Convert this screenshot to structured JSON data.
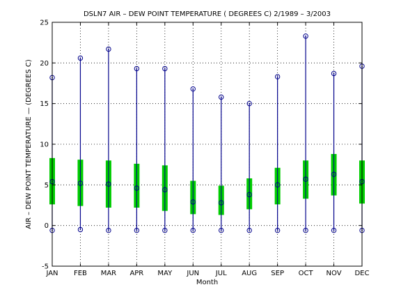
{
  "chart_data": {
    "type": "box",
    "title": "DSLN7  AIR – DEW POINT TEMPERATURE ( DEGREES C) 2/1989 – 3/2003",
    "xlabel": "Month",
    "ylabel": "AIR – DEW POINT TEMPERATURE — (DEGREES C)",
    "categories": [
      "JAN",
      "FEB",
      "MAR",
      "APR",
      "MAY",
      "JUN",
      "JUL",
      "AUG",
      "SEP",
      "OCT",
      "NOV",
      "DEC"
    ],
    "ylim": [
      -5,
      25
    ],
    "yticks": [
      -5,
      0,
      5,
      10,
      15,
      20,
      25
    ],
    "grid": true,
    "series": [
      {
        "min": [
          -0.6,
          -0.5,
          -0.6,
          -0.6,
          -0.6,
          -0.6,
          -0.6,
          -0.6,
          -0.6,
          -0.6,
          -0.6,
          -0.6
        ],
        "q1": [
          2.6,
          2.4,
          2.2,
          2.2,
          1.8,
          1.4,
          1.3,
          2.0,
          2.6,
          3.3,
          3.7,
          2.7
        ],
        "median": [
          5.4,
          5.2,
          5.1,
          4.6,
          4.4,
          2.9,
          2.8,
          3.8,
          5.0,
          5.7,
          6.3,
          5.4
        ],
        "q3": [
          8.3,
          8.1,
          8.0,
          7.6,
          7.4,
          5.5,
          4.9,
          5.8,
          7.1,
          8.0,
          8.8,
          8.0
        ],
        "max": [
          18.2,
          20.6,
          21.7,
          19.3,
          19.3,
          16.8,
          15.8,
          15.0,
          18.3,
          23.3,
          18.7,
          19.6
        ]
      }
    ],
    "colors": {
      "whisker": "#00008b",
      "box": "#00cc00",
      "marker": "#00008b",
      "grid": "#000000"
    }
  }
}
